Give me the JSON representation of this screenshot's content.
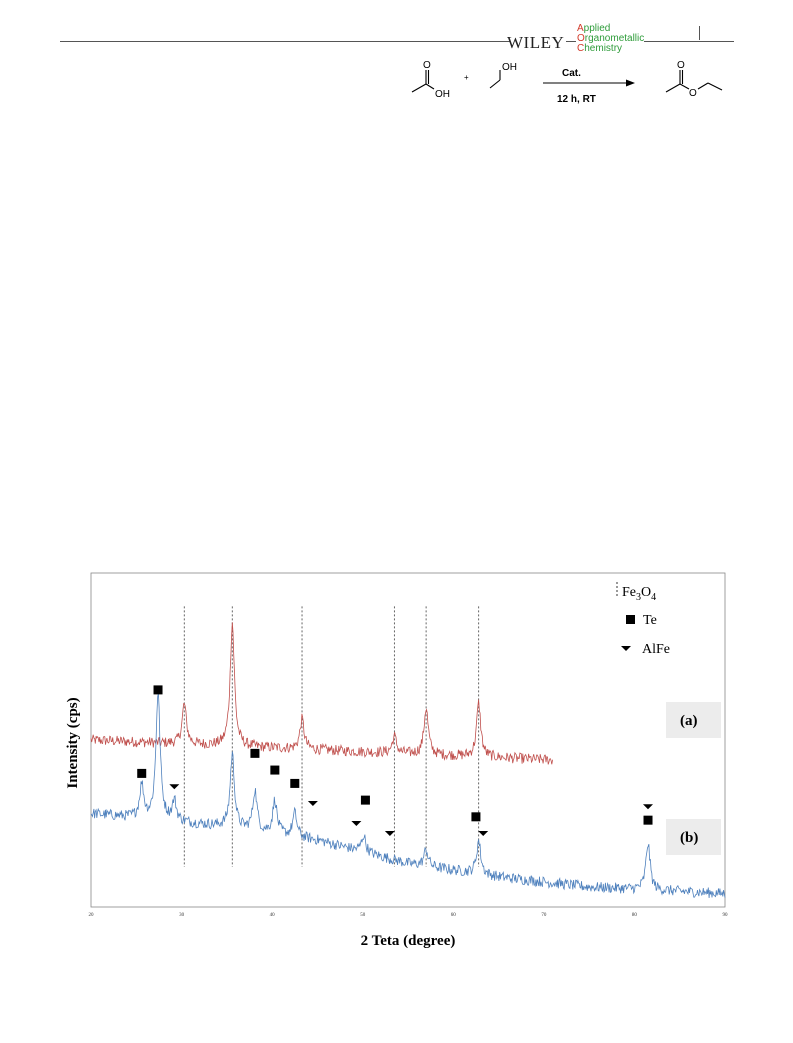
{
  "header": {
    "publisher": "WILEY",
    "journal_lines": [
      {
        "cap": "A",
        "rest": "pplied"
      },
      {
        "cap": "O",
        "rest": "rganometallic"
      },
      {
        "cap": "C",
        "rest": "hemistry"
      }
    ]
  },
  "scheme": {
    "reactant1_label": "OH",
    "plus": "+",
    "reactant2_label": "OH",
    "catalyst": "Cat.",
    "conditions": "12 h, RT"
  },
  "figure": {
    "legend": [
      {
        "symbol": "dash",
        "main": "Fe",
        "sub1": "3",
        "mid": "O",
        "sub2": "4"
      },
      {
        "symbol": "square",
        "main": "Te"
      },
      {
        "symbol": "triangle",
        "main": "AlFe"
      }
    ],
    "label_a": "(a)",
    "label_b": "(b)"
  },
  "chart_data": {
    "type": "line",
    "xlabel": "2 Teta (degree)",
    "ylabel": "Intensity (cps)",
    "xlim": [
      20,
      90
    ],
    "x_ticks": [
      20,
      30,
      40,
      50,
      60,
      70,
      80,
      90
    ],
    "ylim": [
      0,
      100
    ],
    "grid": false,
    "reference_lines": [
      30.3,
      35.6,
      43.3,
      53.5,
      57.0,
      62.8
    ],
    "series": [
      {
        "name": "(a)",
        "color": "#c0504d",
        "x_range": [
          20,
          71
        ],
        "baseline": [
          [
            20,
            50
          ],
          [
            71,
            44
          ]
        ],
        "peaks": [
          [
            30.3,
            12
          ],
          [
            35.6,
            37
          ],
          [
            43.3,
            9
          ],
          [
            53.5,
            5
          ],
          [
            57.0,
            14
          ],
          [
            62.8,
            16
          ]
        ]
      },
      {
        "name": "(b)",
        "color": "#4f81bd",
        "x_range": [
          20,
          90
        ],
        "baseline": [
          [
            20,
            28
          ],
          [
            35,
            24
          ],
          [
            45,
            20
          ],
          [
            55,
            13
          ],
          [
            65,
            9
          ],
          [
            75,
            6
          ],
          [
            90,
            4
          ]
        ],
        "peaks": [
          [
            25.6,
            10
          ],
          [
            27.4,
            38
          ],
          [
            29.2,
            6
          ],
          [
            35.6,
            22
          ],
          [
            38.1,
            12
          ],
          [
            40.3,
            10
          ],
          [
            42.5,
            7
          ],
          [
            50.1,
            5
          ],
          [
            57.0,
            5
          ],
          [
            62.8,
            10
          ],
          [
            81.5,
            14
          ]
        ]
      }
    ],
    "markers": [
      {
        "type": "square",
        "x": 27.4,
        "y": 65
      },
      {
        "type": "square",
        "x": 25.6,
        "y": 40
      },
      {
        "type": "triangle",
        "x": 29.2,
        "y": 36
      },
      {
        "type": "square",
        "x": 38.1,
        "y": 46
      },
      {
        "type": "square",
        "x": 40.3,
        "y": 41
      },
      {
        "type": "square",
        "x": 42.5,
        "y": 37
      },
      {
        "type": "triangle",
        "x": 44.5,
        "y": 31
      },
      {
        "type": "square",
        "x": 50.3,
        "y": 32
      },
      {
        "type": "triangle",
        "x": 49.3,
        "y": 25
      },
      {
        "type": "triangle",
        "x": 53.0,
        "y": 22
      },
      {
        "type": "square",
        "x": 62.5,
        "y": 27
      },
      {
        "type": "triangle",
        "x": 63.3,
        "y": 22
      },
      {
        "type": "triangle",
        "x": 81.5,
        "y": 30
      },
      {
        "type": "square",
        "x": 81.5,
        "y": 26
      }
    ]
  }
}
